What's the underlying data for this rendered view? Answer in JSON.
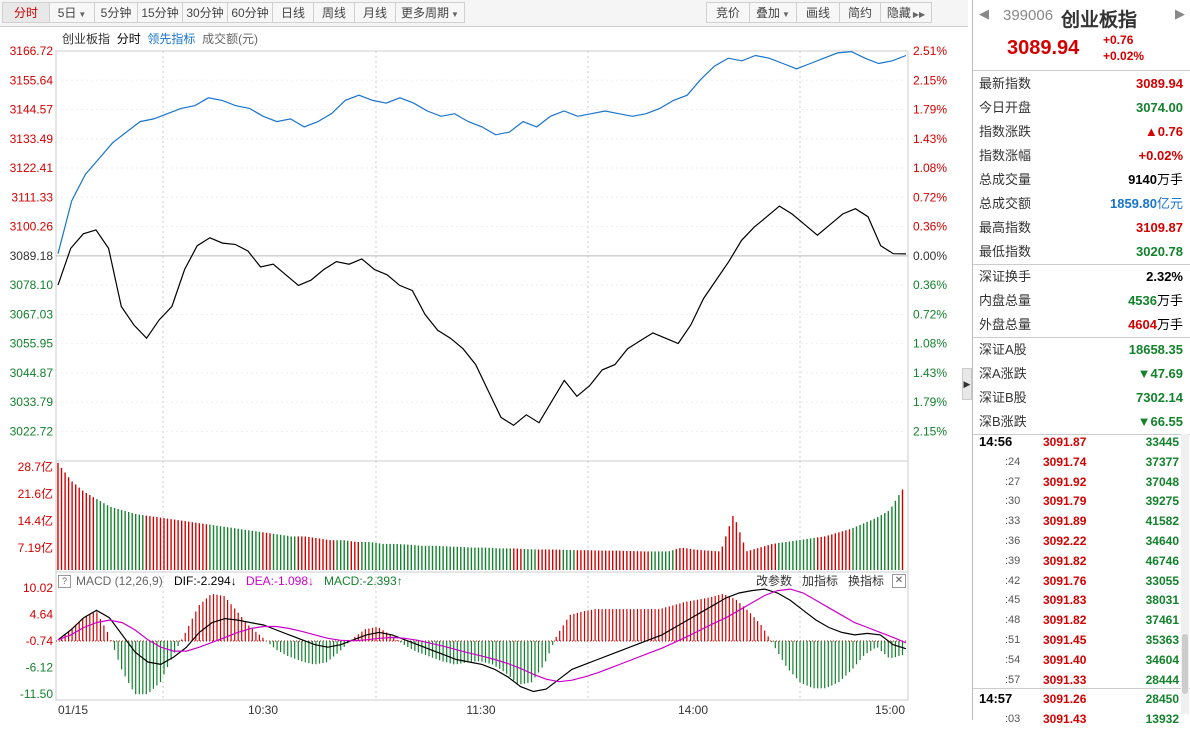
{
  "toolbar": {
    "left": [
      {
        "label": "分时",
        "active": true,
        "dropdown": false
      },
      {
        "label": "5日",
        "active": false,
        "dropdown": true
      },
      {
        "label": "5分钟",
        "active": false,
        "dropdown": false
      },
      {
        "label": "15分钟",
        "active": false,
        "dropdown": false
      },
      {
        "label": "30分钟",
        "active": false,
        "dropdown": false
      },
      {
        "label": "60分钟",
        "active": false,
        "dropdown": false
      },
      {
        "label": "日线",
        "active": false,
        "dropdown": false
      },
      {
        "label": "周线",
        "active": false,
        "dropdown": false
      },
      {
        "label": "月线",
        "active": false,
        "dropdown": false
      },
      {
        "label": "更多周期",
        "active": false,
        "dropdown": true
      }
    ],
    "right": [
      {
        "label": "竞价",
        "dropdown": false
      },
      {
        "label": "叠加",
        "dropdown": true
      },
      {
        "label": "画线",
        "dropdown": false
      },
      {
        "label": "简约",
        "dropdown": false
      },
      {
        "label": "隐藏",
        "dropdown": false
      }
    ]
  },
  "legend": {
    "name": "创业板指",
    "type": "分时",
    "lead": "领先指标",
    "turnover": "成交额(元)"
  },
  "price_axis": [
    "3166.72",
    "3155.64",
    "3144.57",
    "3133.49",
    "3122.41",
    "3111.33",
    "3100.26",
    "3089.18",
    "3078.10",
    "3067.03",
    "3055.95",
    "3044.87",
    "3033.79",
    "3022.72"
  ],
  "pct_axis": [
    "2.51%",
    "2.15%",
    "1.79%",
    "1.43%",
    "1.08%",
    "0.72%",
    "0.36%",
    "0.00%",
    "0.36%",
    "0.72%",
    "1.08%",
    "1.43%",
    "1.79%",
    "2.15%"
  ],
  "volume_axis": [
    "28.7亿",
    "21.6亿",
    "14.4亿",
    "7.19亿"
  ],
  "macd_header": {
    "name": "MACD (12,26,9)",
    "dif": "DIF:-2.294",
    "dea": "DEA:-1.098",
    "macd": "MACD:-2.393",
    "dif_arrow": "↓",
    "dea_arrow": "↓",
    "macd_arrow": "↑",
    "change_param": "改参数",
    "add_indicator": "加指标",
    "switch_indicator": "换指标",
    "close": "✕"
  },
  "macd_axis": [
    "10.02",
    "4.64",
    "-0.74",
    "-6.12",
    "-11.50"
  ],
  "time_axis": [
    "01/15",
    "10:30",
    "11:30",
    "14:00",
    "15:00"
  ],
  "colors": {
    "up": "#d40000",
    "down": "#13822c",
    "line_blue": "#1874cd",
    "dea": "#cc00cc"
  },
  "chart_data": [
    {
      "type": "line",
      "series": [
        {
          "name": "创业板指",
          "values": [
            3078.1,
            3092.0,
            3097.5,
            3099.0,
            3092.0,
            3070.0,
            3063.0,
            3058.0,
            3065.0,
            3070.0,
            3084.0,
            3093.0,
            3096.0,
            3094.0,
            3093.5,
            3091.0,
            3085.0,
            3086.0,
            3082.0,
            3078.0,
            3080.0,
            3084.0,
            3087.0,
            3086.0,
            3088.0,
            3084.0,
            3082.0,
            3078.0,
            3076.0,
            3067.0,
            3061.0,
            3058.0,
            3054.0,
            3048.0,
            3038.0,
            3028.0,
            3025.0,
            3029.0,
            3026.0,
            3034.0,
            3042.0,
            3036.0,
            3040.0,
            3046.0,
            3048.0,
            3054.0,
            3057.0,
            3060.0,
            3058.0,
            3056.0,
            3063.0,
            3073.0,
            3080.0,
            3087.0,
            3095.0,
            3100.0,
            3104.0,
            3108.0,
            3105.0,
            3101.0,
            3097.0,
            3101.0,
            3105.0,
            3107.0,
            3104.0,
            3093.0,
            3090.0,
            3089.9
          ]
        },
        {
          "name": "领先指标",
          "values": [
            3090.0,
            3110.0,
            3120.0,
            3126.0,
            3132.0,
            3136.0,
            3140.0,
            3141.0,
            3143.0,
            3145.0,
            3146.0,
            3149.0,
            3148.0,
            3146.0,
            3145.0,
            3142.0,
            3140.0,
            3141.0,
            3138.0,
            3140.0,
            3143.0,
            3148.0,
            3150.0,
            3148.0,
            3147.0,
            3149.0,
            3147.0,
            3144.0,
            3142.0,
            3143.0,
            3140.0,
            3138.0,
            3135.0,
            3136.0,
            3140.0,
            3138.0,
            3142.0,
            3144.0,
            3142.0,
            3143.0,
            3144.0,
            3143.0,
            3142.0,
            3143.0,
            3145.0,
            3148.0,
            3150.0,
            3156.0,
            3161.0,
            3164.0,
            3163.0,
            3165.0,
            3164.0,
            3162.0,
            3160.0,
            3162.0,
            3164.0,
            3166.0,
            3166.5,
            3164.0,
            3162.0,
            3163.0,
            3165.0
          ]
        }
      ],
      "ylim": [
        3022.72,
        3166.72
      ]
    },
    {
      "type": "bar",
      "series": [
        {
          "name": "成交额",
          "values": [
            28.7,
            24.0,
            21.0,
            19.0,
            17.0,
            16.0,
            15.0,
            14.5,
            14.0,
            13.5,
            13.0,
            12.5,
            12.0,
            11.5,
            11.0,
            10.5,
            10.0,
            9.5,
            9.0,
            9.0,
            8.5,
            8.0,
            8.0,
            7.5,
            7.5,
            7.0,
            7.0,
            6.8,
            6.5,
            6.5,
            6.3,
            6.2,
            6.0,
            6.0,
            5.8,
            5.8,
            5.6,
            5.5,
            5.5,
            5.4,
            5.3,
            5.3,
            5.2,
            5.2,
            5.1,
            5.0,
            5.0,
            5.0,
            6.0,
            5.5,
            5.2,
            5.0,
            15.0,
            5.0,
            6.0,
            7.0,
            7.5,
            8.0,
            8.5,
            9.0,
            10.0,
            11.0,
            12.5,
            14.0,
            16.0,
            21.6
          ]
        }
      ],
      "ylim": [
        0,
        28.7
      ]
    },
    {
      "type": "line",
      "series": [
        {
          "name": "DIF",
          "values": [
            -0.5,
            1.5,
            4.0,
            5.5,
            4.0,
            0.5,
            -3.0,
            -5.0,
            -5.5,
            -4.0,
            -2.0,
            1.0,
            3.0,
            3.8,
            3.5,
            3.0,
            2.5,
            1.5,
            0.5,
            -0.5,
            -1.5,
            -2.0,
            -1.5,
            -0.5,
            0.5,
            1.0,
            0.5,
            -0.5,
            -1.5,
            -2.5,
            -3.5,
            -4.5,
            -5.0,
            -5.5,
            -6.5,
            -8.0,
            -10.0,
            -11.0,
            -10.5,
            -8.5,
            -6.5,
            -5.5,
            -4.5,
            -3.5,
            -2.5,
            -1.5,
            -0.5,
            0.5,
            2.0,
            3.5,
            5.0,
            6.5,
            8.0,
            9.0,
            9.5,
            9.8,
            9.0,
            7.5,
            5.5,
            3.5,
            2.0,
            1.0,
            0.5,
            0.8,
            0.5,
            -1.5,
            -2.294
          ]
        },
        {
          "name": "DEA",
          "values": [
            -0.5,
            0.5,
            2.0,
            3.0,
            3.5,
            3.0,
            1.5,
            -0.5,
            -2.0,
            -2.8,
            -2.8,
            -2.0,
            -1.0,
            0.0,
            1.0,
            1.8,
            2.2,
            2.2,
            1.8,
            1.2,
            0.5,
            -0.2,
            -0.6,
            -0.7,
            -0.5,
            -0.2,
            0.0,
            -0.2,
            -0.6,
            -1.2,
            -1.8,
            -2.5,
            -3.2,
            -3.8,
            -4.5,
            -5.3,
            -6.3,
            -7.5,
            -8.5,
            -9.0,
            -8.7,
            -8.0,
            -7.2,
            -6.2,
            -5.2,
            -4.2,
            -3.2,
            -2.2,
            -1.0,
            0.2,
            1.5,
            2.8,
            4.0,
            5.5,
            7.0,
            8.5,
            9.5,
            9.8,
            9.0,
            7.5,
            6.0,
            4.5,
            3.0,
            2.0,
            1.0,
            0.0,
            -1.098
          ]
        }
      ],
      "ylim": [
        -11.5,
        10.02
      ]
    }
  ],
  "stock": {
    "code": "399006",
    "name": "创业板指",
    "price": "3089.94",
    "change": "+0.76",
    "pct": "+0.02%"
  },
  "info_rows": [
    {
      "k": "最新指数",
      "v": "3089.94",
      "c": "red",
      "unit": ""
    },
    {
      "k": "今日开盘",
      "v": "3074.00",
      "c": "green",
      "unit": ""
    },
    {
      "k": "指数涨跌",
      "v": "▲0.76",
      "c": "red",
      "unit": ""
    },
    {
      "k": "指数涨幅",
      "v": "+0.02%",
      "c": "red",
      "unit": ""
    },
    {
      "k": "总成交量",
      "v": "9140",
      "c": "black",
      "unit": "万手"
    },
    {
      "k": "总成交额",
      "v": "1859.80",
      "c": "blue",
      "unit": "亿元"
    },
    {
      "k": "最高指数",
      "v": "3109.87",
      "c": "red",
      "unit": ""
    },
    {
      "k": "最低指数",
      "v": "3020.78",
      "c": "green",
      "unit": ""
    },
    {
      "k": "深证换手",
      "v": "2.32%",
      "c": "black",
      "unit": ""
    },
    {
      "k": "内盘总量",
      "v": "4536",
      "c": "green",
      "unit": "万手"
    },
    {
      "k": "外盘总量",
      "v": "4604",
      "c": "red",
      "unit": "万手"
    },
    {
      "k": "深证A股",
      "v": "18658.35",
      "c": "green",
      "unit": ""
    },
    {
      "k": "深A涨跌",
      "v": "▼47.69",
      "c": "green",
      "unit": ""
    },
    {
      "k": "深证B股",
      "v": "7302.14",
      "c": "green",
      "unit": ""
    },
    {
      "k": "深B涨跌",
      "v": "▼66.55",
      "c": "green",
      "unit": ""
    }
  ],
  "ticks": [
    {
      "t": "14:56",
      "p": "3091.87",
      "q": "33445",
      "head": true
    },
    {
      "t": ":24",
      "p": "3091.74",
      "q": "37377",
      "head": false
    },
    {
      "t": ":27",
      "p": "3091.92",
      "q": "37048",
      "head": false
    },
    {
      "t": ":30",
      "p": "3091.79",
      "q": "39275",
      "head": false
    },
    {
      "t": ":33",
      "p": "3091.89",
      "q": "41582",
      "head": false
    },
    {
      "t": ":36",
      "p": "3092.22",
      "q": "34640",
      "head": false
    },
    {
      "t": ":39",
      "p": "3091.82",
      "q": "46746",
      "head": false
    },
    {
      "t": ":42",
      "p": "3091.76",
      "q": "33055",
      "head": false
    },
    {
      "t": ":45",
      "p": "3091.83",
      "q": "38031",
      "head": false
    },
    {
      "t": ":48",
      "p": "3091.82",
      "q": "37461",
      "head": false
    },
    {
      "t": ":51",
      "p": "3091.45",
      "q": "35363",
      "head": false
    },
    {
      "t": ":54",
      "p": "3091.40",
      "q": "34604",
      "head": false
    },
    {
      "t": ":57",
      "p": "3091.33",
      "q": "28444",
      "head": false
    },
    {
      "t": "14:57",
      "p": "3091.26",
      "q": "28450",
      "head": true
    },
    {
      "t": ":03",
      "p": "3091.43",
      "q": "13932",
      "head": false
    }
  ]
}
